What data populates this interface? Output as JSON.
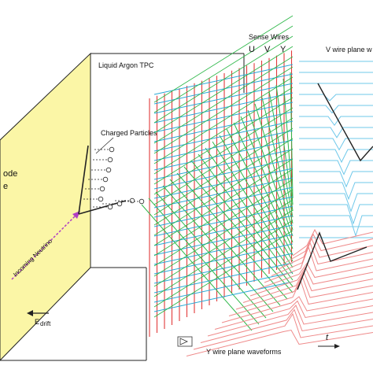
{
  "labels": {
    "tpc": "Liquid Argon TPC",
    "sense_wires": "Sense Wires",
    "wire_u": "U",
    "wire_v": "V",
    "wire_y": "Y",
    "charged_particles": "Charged Particles",
    "incoming_neutrino": "Incoming Neutrino",
    "cathode_line1": "ode",
    "cathode_line2": "e",
    "e_drift": "E",
    "e_drift_sub": "drift",
    "v_waveforms": "V wire plane w",
    "y_waveforms": "Y wire plane waveforms",
    "time_axis": "t"
  },
  "colors": {
    "cathode_fill": "#fbf6a6",
    "u_wires": "#2fb84a",
    "v_wires": "#29a9d6",
    "y_wires": "#e23a3a",
    "v_waveform": "#6fc8ea",
    "y_waveform": "#ef8a8a",
    "neutrino": "#b03fc4",
    "outline": "#222222"
  },
  "icons": [
    "arrow-left-icon",
    "amplifier-icon",
    "time-arrow-icon",
    "ionization-electron-icon"
  ]
}
